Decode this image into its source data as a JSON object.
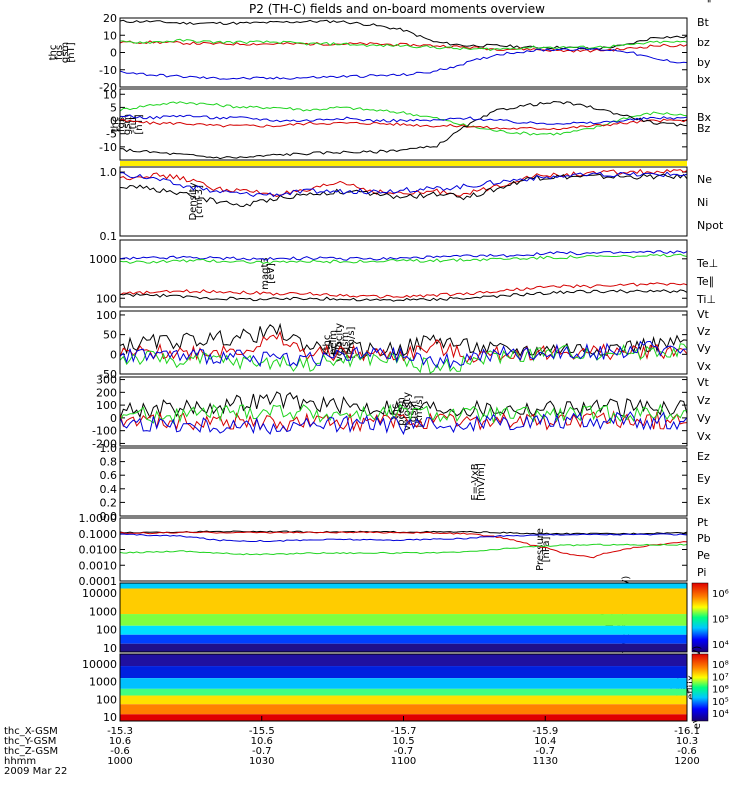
{
  "title": "P2 (TH-C) fields and on-board moments overview",
  "colors": {
    "black": "#000000",
    "red": "#d40000",
    "green": "#1fd41f",
    "blue": "#0000d8",
    "yellow": "#ffee00"
  },
  "x_ticks": [
    "1000",
    "1030",
    "1100",
    "1130",
    "1200"
  ],
  "ephemeris": {
    "row_labels": [
      "thc_X-GSM",
      "thc_Y-GSM",
      "thc_Z-GSM",
      "hhmm",
      "2009 Mar 22"
    ],
    "columns": [
      {
        "x": "-15.3",
        "y": "10.6",
        "z": "-0.6",
        "hhmm": "1000"
      },
      {
        "x": "-15.5",
        "y": "10.6",
        "z": "-0.7",
        "hhmm": "1030"
      },
      {
        "x": "-15.7",
        "y": "10.5",
        "z": "-0.7",
        "hhmm": "1100"
      },
      {
        "x": "-15.9",
        "y": "10.4",
        "z": "-0.7",
        "hhmm": "1130"
      },
      {
        "x": "-16.1",
        "y": "10.3",
        "z": "-0.6",
        "hhmm": "1200"
      }
    ]
  },
  "chart_data": [
    {
      "type": "line",
      "ylabel": "thc fgs gsm [nT]",
      "ylim": [
        -20,
        20
      ],
      "yticks": [
        "20",
        "10",
        "0",
        "-10",
        "-20"
      ],
      "series": [
        {
          "name": "Bt",
          "color": "black",
          "values": [
            18,
            18,
            17,
            17,
            17,
            17.5,
            18,
            18,
            16,
            13,
            6,
            4,
            4,
            3,
            3,
            2,
            4,
            9,
            9
          ]
        },
        {
          "name": "bz",
          "color": "red",
          "values": [
            6,
            6,
            5.5,
            5,
            5,
            5,
            5,
            5,
            5,
            4.5,
            4,
            3,
            2,
            2,
            1,
            1,
            2,
            4,
            4
          ]
        },
        {
          "name": "by",
          "color": "green",
          "values": [
            6,
            6,
            7,
            6,
            6,
            6,
            5,
            5,
            4,
            4,
            3,
            2,
            2,
            3,
            3,
            3,
            4,
            6,
            6
          ]
        },
        {
          "name": "bx",
          "color": "blue",
          "values": [
            -11,
            -13,
            -14,
            -15,
            -15,
            -15,
            -14.5,
            -14,
            -13.5,
            -13,
            -11,
            -6,
            -1,
            1,
            2,
            2,
            1,
            -4,
            -6
          ]
        }
      ]
    },
    {
      "type": "line",
      "ylabel": "thc fgs gsm -tilt [nT]",
      "ylim": [
        -15,
        12
      ],
      "yticks": [
        "10",
        "5",
        "0",
        "-5",
        "-10"
      ],
      "series": [
        {
          "name": "Bx",
          "color": "green",
          "values": [
            4,
            6,
            7,
            6,
            5,
            5,
            4,
            5,
            4,
            3,
            1,
            -2,
            -4,
            -5,
            -5,
            -3,
            1,
            3,
            2
          ]
        },
        {
          "name": "Bz",
          "color": "red",
          "values": [
            0,
            -1,
            -1,
            -2,
            -2,
            -2,
            -1,
            -1,
            -1,
            -1.5,
            -2,
            -2,
            -3,
            -3,
            -3,
            -2,
            -1,
            0,
            0
          ]
        },
        {
          "name": "",
          "color": "black",
          "values": [
            -11,
            -12,
            -13,
            -14,
            -14,
            -13,
            -12.5,
            -12,
            -12,
            -11,
            -10,
            -2,
            4,
            6,
            7,
            5,
            2,
            -1,
            -2
          ]
        },
        {
          "name": "",
          "color": "blue",
          "values": [
            2,
            1,
            2,
            1,
            1,
            0,
            0,
            1,
            0,
            0,
            0,
            1,
            0,
            -1,
            -1,
            -1,
            0,
            1,
            1
          ]
        }
      ]
    },
    {
      "type": "line",
      "ylabel": "Density [cm-3]",
      "ylim": [
        0.1,
        1.2
      ],
      "log": true,
      "yticks": [
        "1.0",
        "0.1"
      ],
      "series": [
        {
          "name": "Ne",
          "color": "red",
          "values": [
            0.8,
            0.9,
            0.8,
            0.55,
            0.5,
            0.45,
            0.5,
            0.7,
            0.5,
            0.45,
            0.5,
            0.45,
            0.6,
            0.85,
            0.9,
            0.95,
            1.0,
            1.0,
            1.0
          ]
        },
        {
          "name": "Ni",
          "color": "black",
          "values": [
            0.6,
            0.55,
            0.45,
            0.35,
            0.3,
            0.4,
            0.45,
            0.5,
            0.45,
            0.4,
            0.45,
            0.4,
            0.55,
            0.8,
            0.85,
            0.85,
            0.85,
            0.85,
            0.85
          ]
        },
        {
          "name": "Npot",
          "color": "blue",
          "values": [
            0.95,
            0.8,
            0.6,
            0.5,
            0.45,
            0.45,
            0.5,
            0.5,
            0.5,
            0.52,
            0.55,
            0.6,
            0.7,
            0.8,
            0.85,
            0.9,
            0.9,
            0.92,
            0.92
          ]
        }
      ]
    },
    {
      "type": "line",
      "ylabel": "magt3 [eV]",
      "ylim": [
        60,
        3000
      ],
      "log": true,
      "yticks": [
        "1000",
        "100"
      ],
      "series": [
        {
          "name": "Te⊥",
          "color": "red",
          "values": [
            130,
            140,
            150,
            150,
            140,
            130,
            130,
            120,
            110,
            110,
            120,
            130,
            150,
            180,
            200,
            200,
            220,
            230,
            230
          ]
        },
        {
          "name": "Te∥",
          "color": "black",
          "values": [
            120,
            120,
            110,
            100,
            95,
            95,
            100,
            95,
            90,
            90,
            95,
            100,
            110,
            130,
            140,
            150,
            150,
            150,
            150
          ]
        },
        {
          "name": "Ti⊥",
          "color": "blue",
          "values": [
            1000,
            1050,
            1100,
            1050,
            1000,
            1000,
            1050,
            1000,
            1000,
            1050,
            1100,
            1150,
            1200,
            1300,
            1400,
            1400,
            1450,
            1500,
            1500
          ]
        },
        {
          "name": "Ti∥",
          "color": "green",
          "values": [
            800,
            850,
            900,
            900,
            850,
            800,
            850,
            850,
            850,
            900,
            900,
            950,
            1000,
            1050,
            1100,
            1150,
            1150,
            1200,
            1200
          ]
        }
      ]
    },
    {
      "type": "line",
      "ylabel": "thc peim velocity gsm [km/s]",
      "ylim": [
        -50,
        110
      ],
      "yticks": [
        "100",
        "50",
        "0",
        "-50"
      ],
      "series": [
        {
          "name": "Vt",
          "color": "black",
          "values": [
            20,
            30,
            35,
            40,
            45,
            60,
            20,
            15,
            10,
            15,
            40,
            20,
            10,
            10,
            15,
            15,
            20,
            25,
            30
          ]
        },
        {
          "name": "Vz",
          "color": "red",
          "values": [
            0,
            5,
            5,
            10,
            15,
            40,
            0,
            5,
            0,
            0,
            20,
            -5,
            0,
            5,
            5,
            5,
            5,
            10,
            10
          ]
        },
        {
          "name": "Vy",
          "color": "green",
          "values": [
            -10,
            -10,
            -15,
            -15,
            -20,
            -20,
            -25,
            -15,
            -10,
            -15,
            -35,
            -20,
            -5,
            0,
            5,
            5,
            5,
            10,
            10
          ]
        },
        {
          "name": "Vx",
          "color": "blue",
          "values": [
            0,
            0,
            -5,
            -5,
            -10,
            -10,
            -10,
            -5,
            0,
            -5,
            -20,
            -10,
            0,
            0,
            5,
            5,
            10,
            15,
            15
          ]
        }
      ]
    },
    {
      "type": "line",
      "ylabel": "thc peem velocity gsm [km/s]",
      "ylim": [
        -220,
        320
      ],
      "yticks": [
        "300",
        "200",
        "100",
        "0",
        "-100",
        "-200"
      ],
      "series": [
        {
          "name": "Vt",
          "color": "black",
          "values": [
            60,
            70,
            80,
            90,
            120,
            150,
            110,
            100,
            80,
            90,
            80,
            70,
            70,
            70,
            80,
            80,
            80,
            90,
            90
          ]
        },
        {
          "name": "Vz",
          "color": "red",
          "values": [
            -20,
            -20,
            -25,
            -30,
            -30,
            -40,
            -30,
            -35,
            -30,
            -30,
            -35,
            -30,
            -25,
            -25,
            -20,
            -20,
            -20,
            -20,
            -20
          ]
        },
        {
          "name": "Vy",
          "color": "green",
          "values": [
            20,
            25,
            30,
            40,
            50,
            60,
            40,
            30,
            30,
            40,
            30,
            20,
            20,
            20,
            25,
            30,
            30,
            35,
            35
          ]
        },
        {
          "name": "Vx",
          "color": "blue",
          "values": [
            -40,
            -50,
            -50,
            -60,
            -60,
            -70,
            -60,
            -50,
            -50,
            -60,
            -60,
            -40,
            -30,
            -20,
            -20,
            -20,
            -20,
            -20,
            -20
          ]
        }
      ]
    },
    {
      "type": "line",
      "ylabel": "E=-VxB [mV/m]",
      "ylim": [
        0,
        1
      ],
      "yticks": [
        "1.0",
        "0.8",
        "0.6",
        "0.4",
        "0.2",
        "0.0"
      ],
      "series": [
        {
          "name": "Ez",
          "color": "red",
          "values": []
        },
        {
          "name": "Ey",
          "color": "green",
          "values": []
        },
        {
          "name": "Ex",
          "color": "blue",
          "values": []
        }
      ]
    },
    {
      "type": "line",
      "ylabel": "Pressure [nPa]",
      "ylim": [
        0.0001,
        1
      ],
      "log": true,
      "yticks": [
        "1.0000",
        "0.1000",
        "0.0100",
        "0.0010",
        "0.0001"
      ],
      "series": [
        {
          "name": "Pt",
          "color": "black",
          "values": [
            0.12,
            0.12,
            0.13,
            0.14,
            0.14,
            0.14,
            0.13,
            0.13,
            0.13,
            0.13,
            0.13,
            0.13,
            0.12,
            0.1,
            0.1,
            0.1,
            0.1,
            0.11,
            0.12
          ]
        },
        {
          "name": "Pb",
          "color": "red",
          "values": [
            0.11,
            0.11,
            0.12,
            0.12,
            0.12,
            0.12,
            0.12,
            0.12,
            0.12,
            0.12,
            0.11,
            0.1,
            0.06,
            0.02,
            0.006,
            0.003,
            0.01,
            0.02,
            0.03
          ]
        },
        {
          "name": "Pe",
          "color": "green",
          "values": [
            0.006,
            0.007,
            0.008,
            0.006,
            0.005,
            0.005,
            0.006,
            0.006,
            0.006,
            0.006,
            0.006,
            0.007,
            0.01,
            0.015,
            0.018,
            0.02,
            0.02,
            0.02,
            0.02
          ]
        },
        {
          "name": "Pi",
          "color": "blue",
          "values": [
            0.09,
            0.08,
            0.07,
            0.04,
            0.035,
            0.035,
            0.04,
            0.045,
            0.04,
            0.04,
            0.045,
            0.05,
            0.07,
            0.08,
            0.09,
            0.09,
            0.09,
            0.09,
            0.09
          ]
        }
      ]
    },
    {
      "type": "heatmap",
      "ylabel": "thc peir en eflux eV/(cm2-s-sr-eV)",
      "log": true,
      "ylim": [
        10,
        15000
      ],
      "yticks": [
        "10000",
        "1000",
        "100",
        "10"
      ],
      "colorbar_ticks": [
        "10⁶",
        "10⁵",
        "10⁴"
      ]
    },
    {
      "type": "heatmap",
      "ylabel": "thc peer en eflux eV/(cm2-s-sr-eV)",
      "log": true,
      "ylim": [
        10,
        15000
      ],
      "yticks": [
        "10000",
        "1000",
        "100",
        "10"
      ],
      "colorbar_ticks": [
        "10⁸",
        "10⁷",
        "10⁶",
        "10⁵",
        "10⁴"
      ]
    }
  ]
}
